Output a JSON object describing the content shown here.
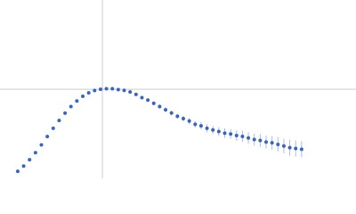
{
  "chart_data": {
    "type": "scatter",
    "x": [
      0.3,
      0.4,
      0.5,
      0.6,
      0.7,
      0.8,
      0.9,
      1.0,
      1.1,
      1.2,
      1.3,
      1.4,
      1.5,
      1.6,
      1.7,
      1.8,
      1.9,
      2.0,
      2.1,
      2.2,
      2.3,
      2.4,
      2.5,
      2.6,
      2.7,
      2.8,
      2.9,
      3.0,
      3.1,
      3.2,
      3.3,
      3.4,
      3.5,
      3.6,
      3.7,
      3.8,
      3.9,
      4.0,
      4.1,
      4.2,
      4.3,
      4.4,
      4.5,
      4.6,
      4.7,
      4.8,
      4.9,
      5.0,
      5.1
    ],
    "series": [
      {
        "color": "#3a65b8",
        "values": [
          0.087,
          0.152,
          0.23,
          0.317,
          0.415,
          0.518,
          0.62,
          0.717,
          0.808,
          0.889,
          0.959,
          1.016,
          1.059,
          1.089,
          1.104,
          1.11,
          1.11,
          1.1,
          1.09,
          1.07,
          1.04,
          1.0,
          0.97,
          0.93,
          0.89,
          0.85,
          0.81,
          0.77,
          0.74,
          0.71,
          0.67,
          0.65,
          0.62,
          0.6,
          0.58,
          0.56,
          0.55,
          0.53,
          0.52,
          0.5,
          0.48,
          0.47,
          0.45,
          0.44,
          0.42,
          0.4,
          0.38,
          0.37,
          0.36
        ],
        "errors": [
          0.005,
          0.005,
          0.005,
          0.005,
          0.005,
          0.005,
          0.005,
          0.005,
          0.005,
          0.005,
          0.005,
          0.005,
          0.005,
          0.005,
          0.005,
          0.01,
          0.01,
          0.01,
          0.015,
          0.015,
          0.02,
          0.02,
          0.02,
          0.025,
          0.025,
          0.03,
          0.03,
          0.03,
          0.035,
          0.04,
          0.04,
          0.045,
          0.05,
          0.05,
          0.055,
          0.06,
          0.06,
          0.065,
          0.07,
          0.07,
          0.075,
          0.08,
          0.08,
          0.085,
          0.09,
          0.09,
          0.1,
          0.1,
          0.1
        ],
        "error_color": "#a9bde6"
      }
    ],
    "xlim": [
      0,
      6.02
    ],
    "ylim": [
      0,
      2.21
    ],
    "reference_lines": {
      "x": 1.732,
      "y": 1.104,
      "color": "#cccccc"
    }
  }
}
